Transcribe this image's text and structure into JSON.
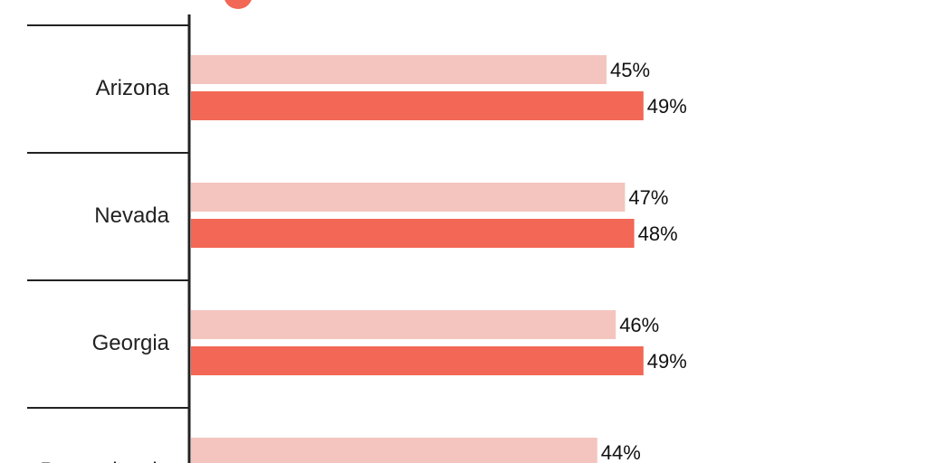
{
  "chart_data": {
    "type": "bar",
    "orientation": "horizontal",
    "categories": [
      "Arizona",
      "Nevada",
      "Georgia",
      "Pennsylvania"
    ],
    "series": [
      {
        "values": [
          45,
          47,
          46,
          44
        ],
        "color": "#f4c5bf"
      },
      {
        "values": [
          49,
          48,
          49,
          null
        ],
        "color": "#f26755"
      }
    ],
    "value_suffix": "%",
    "xlim": [
      0,
      65
    ],
    "legend": {
      "visible_marker_color": "#f26755",
      "placement": "top"
    },
    "grid": false
  }
}
